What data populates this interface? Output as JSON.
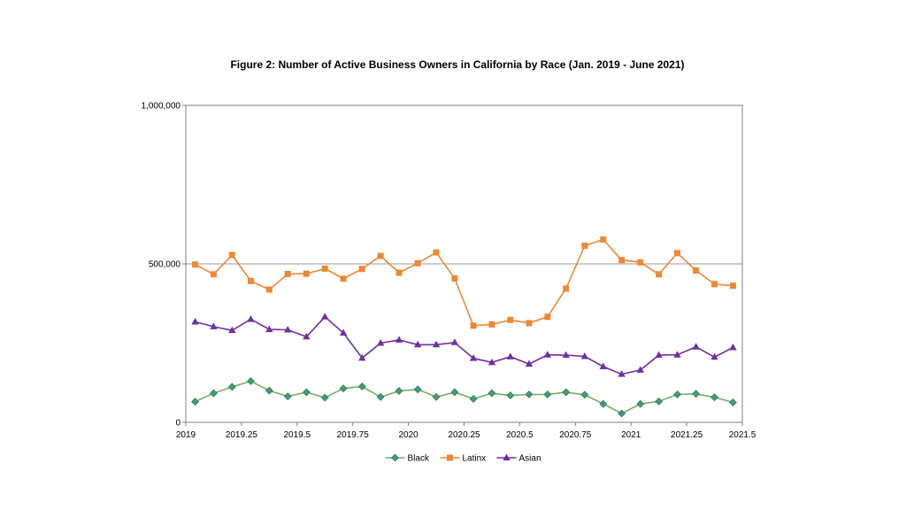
{
  "chart_data": {
    "type": "line",
    "title": "Figure 2: Number of Active Business Owners in California by Race (Jan. 2019 - June 2021)",
    "xlabel": "",
    "ylabel": "",
    "xlim": [
      2019,
      2021.5
    ],
    "ylim": [
      0,
      1000000
    ],
    "x_ticks": [
      2019,
      2019.25,
      2019.5,
      2019.75,
      2020,
      2020.25,
      2020.5,
      2020.75,
      2021,
      2021.25,
      2021.5
    ],
    "x_tick_labels": [
      "2019",
      "2019.25",
      "2019.5",
      "2019.75",
      "2020",
      "2020.25",
      "2020.5",
      "2020.75",
      "2021",
      "2021.25",
      "2021.5"
    ],
    "y_ticks": [
      0,
      500000,
      1000000
    ],
    "y_tick_labels": [
      "0",
      "500,000",
      "1,000,000"
    ],
    "grid": "horizontal",
    "legend_position": "bottom",
    "x": [
      2019.042,
      2019.125,
      2019.208,
      2019.292,
      2019.375,
      2019.458,
      2019.542,
      2019.625,
      2019.708,
      2019.792,
      2019.875,
      2019.958,
      2020.042,
      2020.125,
      2020.208,
      2020.292,
      2020.375,
      2020.458,
      2020.542,
      2020.625,
      2020.708,
      2020.792,
      2020.875,
      2020.958,
      2021.042,
      2021.125,
      2021.208,
      2021.292,
      2021.375,
      2021.458
    ],
    "series": [
      {
        "name": "Black",
        "color": "#77b05a",
        "marker": "diamond",
        "marker_color": "#3d9a8c",
        "values": [
          65000,
          92000,
          112000,
          130000,
          100000,
          82000,
          95000,
          78000,
          107000,
          113000,
          80000,
          99000,
          104000,
          80000,
          95000,
          74000,
          92000,
          85000,
          88000,
          88000,
          95000,
          87000,
          58000,
          28000,
          58000,
          66000,
          88000,
          90000,
          79000,
          63000
        ]
      },
      {
        "name": "Latinx",
        "color": "#ed8833",
        "marker": "square",
        "marker_color": "#ed8833",
        "values": [
          498000,
          467000,
          528000,
          446000,
          419000,
          468000,
          469000,
          485000,
          453000,
          484000,
          525000,
          472000,
          502000,
          536000,
          454000,
          305000,
          309000,
          323000,
          313000,
          333000,
          422000,
          557000,
          577000,
          512000,
          505000,
          467000,
          534000,
          479000,
          436000,
          431000
        ]
      },
      {
        "name": "Asian",
        "color": "#7030a0",
        "marker": "triangle",
        "marker_color": "#7030a0",
        "values": [
          317000,
          302000,
          290000,
          325000,
          293000,
          292000,
          270000,
          333000,
          282000,
          203000,
          250000,
          260000,
          245000,
          245000,
          252000,
          202000,
          189000,
          207000,
          184000,
          213000,
          212000,
          208000,
          176000,
          152000,
          165000,
          212000,
          213000,
          238000,
          206000,
          236000
        ]
      }
    ]
  }
}
